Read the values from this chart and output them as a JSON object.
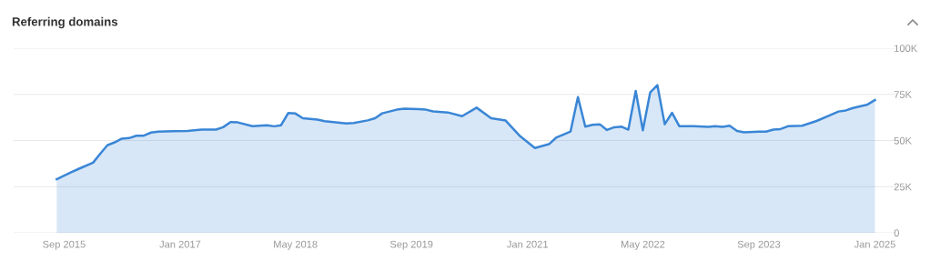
{
  "chart_data": {
    "type": "area",
    "title": "Referring domains",
    "x": [
      "2015-08",
      "2015-10",
      "2015-11",
      "2016-01",
      "2016-02",
      "2016-03",
      "2016-04",
      "2016-05",
      "2016-06",
      "2016-07",
      "2016-08",
      "2016-09",
      "2016-10",
      "2016-12",
      "2017-02",
      "2017-04",
      "2017-06",
      "2017-07",
      "2017-08",
      "2017-09",
      "2017-11",
      "2018-01",
      "2018-02",
      "2018-03",
      "2018-04",
      "2018-05",
      "2018-06",
      "2018-08",
      "2018-09",
      "2018-12",
      "2019-01",
      "2019-03",
      "2019-04",
      "2019-05",
      "2019-07",
      "2019-08",
      "2019-10",
      "2019-11",
      "2019-12",
      "2020-02",
      "2020-04",
      "2020-06",
      "2020-08",
      "2020-10",
      "2020-12",
      "2021-02",
      "2021-04",
      "2021-05",
      "2021-07",
      "2021-08",
      "2021-09",
      "2021-10",
      "2021-11",
      "2021-12",
      "2022-01",
      "2022-02",
      "2022-03",
      "2022-04",
      "2022-05",
      "2022-06",
      "2022-07",
      "2022-08",
      "2022-09",
      "2022-10",
      "2022-12",
      "2023-02",
      "2023-03",
      "2023-04",
      "2023-05",
      "2023-06",
      "2023-07",
      "2023-09",
      "2023-10",
      "2023-11",
      "2023-12",
      "2024-01",
      "2024-03",
      "2024-05",
      "2024-07",
      "2024-08",
      "2024-09",
      "2024-10",
      "2024-12",
      "2025-01"
    ],
    "series": [
      {
        "color": "#3a86d6",
        "values": [
          29000,
          32800,
          34600,
          38000,
          43000,
          47400,
          49000,
          51000,
          51300,
          52600,
          52600,
          54300,
          54800,
          55000,
          55200,
          55900,
          55900,
          57200,
          60000,
          59800,
          57800,
          58200,
          57700,
          58200,
          64900,
          64600,
          62100,
          61300,
          60500,
          59200,
          59500,
          60900,
          62100,
          64700,
          66700,
          67200,
          67000,
          66700,
          65800,
          65200,
          63200,
          67800,
          62100,
          60800,
          52300,
          45900,
          48000,
          51500,
          54900,
          73500,
          57500,
          58500,
          58800,
          55700,
          57200,
          57500,
          55900,
          76800,
          55500,
          76100,
          80000,
          58800,
          65000,
          57800,
          57800,
          57400,
          57800,
          57400,
          58000,
          55200,
          54400,
          54800,
          54800,
          55900,
          56200,
          57700,
          58000,
          60600,
          64000,
          65700,
          66300,
          67600,
          69500,
          71900
        ]
      }
    ],
    "xlim": [
      "2015-02",
      "2025-04"
    ],
    "xticks": [
      {
        "value": "2015-09",
        "label": "Sep 2015"
      },
      {
        "value": "2017-01",
        "label": "Jan 2017"
      },
      {
        "value": "2018-05",
        "label": "May 2018"
      },
      {
        "value": "2019-09",
        "label": "Sep 2019"
      },
      {
        "value": "2021-01",
        "label": "Jan 2021"
      },
      {
        "value": "2022-05",
        "label": "May 2022"
      },
      {
        "value": "2023-09",
        "label": "Sep 2023"
      },
      {
        "value": "2025-01",
        "label": "Jan 2025"
      }
    ],
    "ylim": [
      0,
      100000
    ],
    "yticks": [
      0,
      {
        "value": 25000,
        "label": "25K"
      },
      {
        "value": 50000,
        "label": "50K"
      },
      {
        "value": 75000,
        "label": "75K"
      },
      {
        "value": 100000,
        "label": "100K"
      }
    ],
    "grid": "y",
    "marker": "none",
    "line_style": "solid"
  }
}
